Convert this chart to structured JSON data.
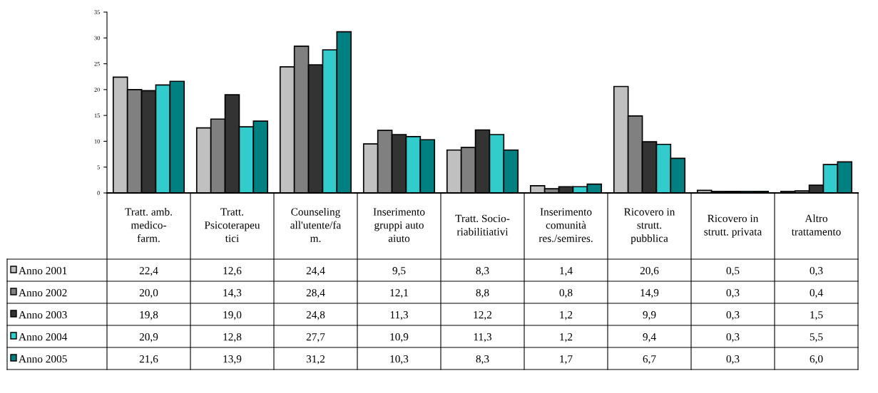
{
  "chart_data": {
    "type": "bar",
    "categories": [
      "Tratt. amb.\nmedico-\nfarm.",
      "Tratt.\nPsicoterapeu\ntici",
      "Counseling\nall'utente/fa\nm.",
      "Inserimento\ngruppi auto\naiuto",
      "Tratt. Socio-\nriabilitiativi",
      "Inserimento\ncomunità\nres./semires.",
      "Ricovero in\nstrutt.\npubblica",
      "Ricovero in\nstrutt. privata",
      "Altro\ntrattamento"
    ],
    "series": [
      {
        "name": "Anno 2001",
        "color": "#c0c0c0",
        "values": [
          22.4,
          12.6,
          24.4,
          9.5,
          8.3,
          1.4,
          20.6,
          0.5,
          0.3
        ],
        "value_labels": [
          "22,4",
          "12,6",
          "24,4",
          "9,5",
          "8,3",
          "1,4",
          "20,6",
          "0,5",
          "0,3"
        ]
      },
      {
        "name": "Anno 2002",
        "color": "#808080",
        "values": [
          20.0,
          14.3,
          28.4,
          12.1,
          8.8,
          0.8,
          14.9,
          0.3,
          0.4
        ],
        "value_labels": [
          "20,0",
          "14,3",
          "28,4",
          "12,1",
          "8,8",
          "0,8",
          "14,9",
          "0,3",
          "0,4"
        ]
      },
      {
        "name": "Anno 2003",
        "color": "#333333",
        "values": [
          19.8,
          19.0,
          24.8,
          11.3,
          12.2,
          1.2,
          9.9,
          0.3,
          1.5
        ],
        "value_labels": [
          "19,8",
          "19,0",
          "24,8",
          "11,3",
          "12,2",
          "1,2",
          "9,9",
          "0,3",
          "1,5"
        ]
      },
      {
        "name": "Anno 2004",
        "color": "#33cccc",
        "values": [
          20.9,
          12.8,
          27.7,
          10.9,
          11.3,
          1.2,
          9.4,
          0.3,
          5.5
        ],
        "value_labels": [
          "20,9",
          "12,8",
          "27,7",
          "10,9",
          "11,3",
          "1,2",
          "9,4",
          "0,3",
          "5,5"
        ]
      },
      {
        "name": "Anno 2005",
        "color": "#008080",
        "values": [
          21.6,
          13.9,
          31.2,
          10.3,
          8.3,
          1.7,
          6.7,
          0.3,
          6.0
        ],
        "value_labels": [
          "21,6",
          "13,9",
          "31,2",
          "10,3",
          "8,3",
          "1,7",
          "6,7",
          "0,3",
          "6,0"
        ]
      }
    ],
    "ylim": [
      0,
      35
    ],
    "yticks": [
      0,
      5,
      10,
      15,
      20,
      25,
      30,
      35
    ],
    "grid": false,
    "legend": "bottom left"
  }
}
